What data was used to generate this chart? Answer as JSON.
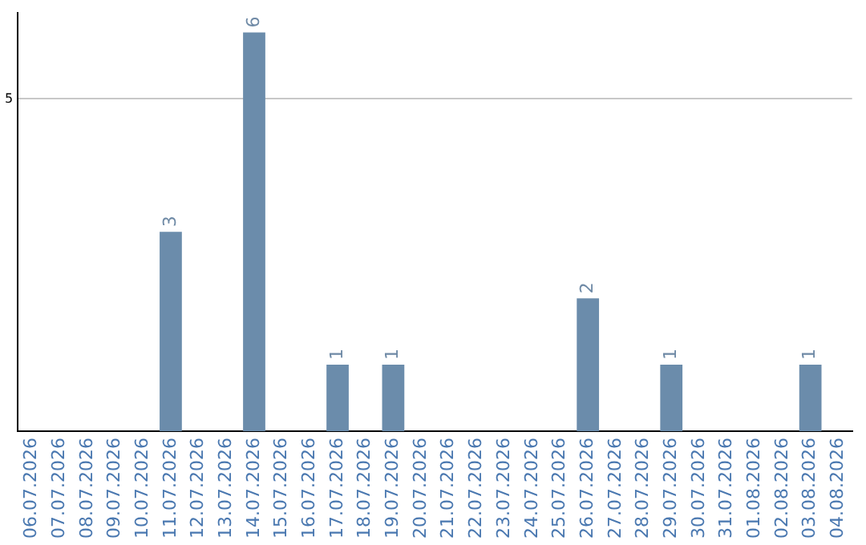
{
  "chart_data": {
    "type": "bar",
    "categories": [
      "06.07.2026",
      "07.07.2026",
      "08.07.2026",
      "09.07.2026",
      "10.07.2026",
      "11.07.2026",
      "12.07.2026",
      "13.07.2026",
      "14.07.2026",
      "15.07.2026",
      "16.07.2026",
      "17.07.2026",
      "18.07.2026",
      "19.07.2026",
      "20.07.2026",
      "21.07.2026",
      "22.07.2026",
      "23.07.2026",
      "24.07.2026",
      "25.07.2026",
      "26.07.2026",
      "27.07.2026",
      "28.07.2026",
      "29.07.2026",
      "30.07.2026",
      "31.07.2026",
      "01.08.2026",
      "02.08.2026",
      "03.08.2026",
      "04.08.2026"
    ],
    "values": [
      0,
      0,
      0,
      0,
      0,
      3,
      0,
      0,
      6,
      0,
      0,
      1,
      0,
      1,
      0,
      0,
      0,
      0,
      0,
      0,
      2,
      0,
      0,
      1,
      0,
      0,
      0,
      0,
      1,
      0
    ],
    "value_labels": [
      null,
      null,
      null,
      null,
      null,
      "3",
      null,
      null,
      "6",
      null,
      null,
      "1",
      null,
      "1",
      null,
      null,
      null,
      null,
      null,
      null,
      "2",
      null,
      null,
      "1",
      null,
      null,
      null,
      null,
      "1",
      null
    ],
    "color": "#6b8cab",
    "ylim": [
      0,
      6.3
    ],
    "yticks": [
      5
    ],
    "grid": "y",
    "legend": false
  }
}
